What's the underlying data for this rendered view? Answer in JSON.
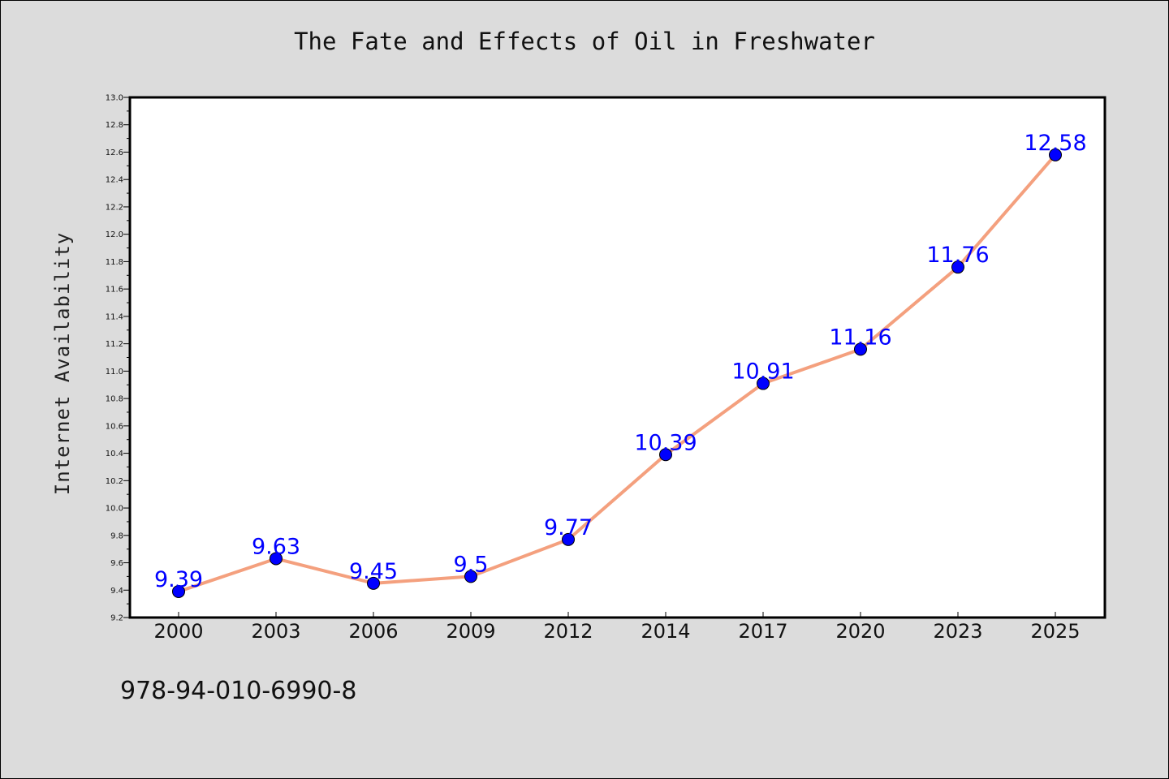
{
  "chart_data": {
    "type": "line",
    "title": "The Fate and Effects of Oil in Freshwater",
    "xlabel": "",
    "ylabel": "Internet Availability",
    "categories": [
      "2000",
      "2003",
      "2006",
      "2009",
      "2012",
      "2014",
      "2017",
      "2020",
      "2023",
      "2025"
    ],
    "series": [
      {
        "values": [
          9.39,
          9.63,
          9.45,
          9.5,
          9.77,
          10.39,
          10.91,
          11.16,
          11.76,
          12.58
        ],
        "labels": [
          "9.39",
          "9.63",
          "9.45",
          "9.5",
          "9.77",
          "10.39",
          "10.91",
          "11.16",
          "11.76",
          "12.58"
        ],
        "line_color": "#f4a07e",
        "marker_color": "#0000ff"
      }
    ],
    "ylim": [
      9.2,
      13.0
    ],
    "yticks": [
      "9.2",
      "9.4",
      "9.6",
      "9.8",
      "10.0",
      "10.2",
      "10.4",
      "10.6",
      "10.8",
      "11.0",
      "11.2",
      "11.4",
      "11.6",
      "11.8",
      "12.0",
      "12.2",
      "12.4",
      "12.6",
      "12.8",
      "13.0"
    ],
    "grid": false,
    "legend": "none"
  },
  "footer": {
    "isbn": "978-94-010-6990-8"
  },
  "colors": {
    "background": "#dcdcdc",
    "plot_area": "#ffffff"
  }
}
